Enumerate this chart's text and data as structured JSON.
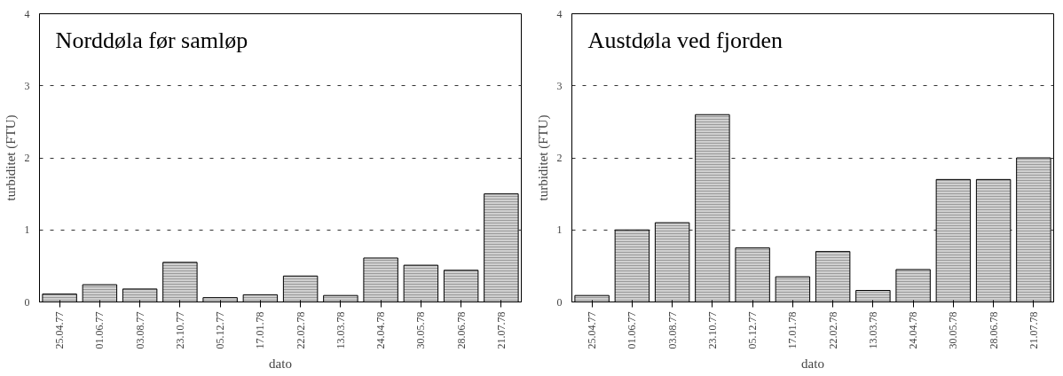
{
  "chart_data": [
    {
      "type": "bar",
      "title": "Norddøla før samløp",
      "xlabel": "dato",
      "ylabel": "turbiditet (FTU)",
      "categories": [
        "25.04.77",
        "01.06.77",
        "03.08.77",
        "23.10.77",
        "05.12.77",
        "17.01.78",
        "22.02.78",
        "13.03.78",
        "24.04.78",
        "30.05.78",
        "28.06.78",
        "21.07.78"
      ],
      "values": [
        0.11,
        0.24,
        0.18,
        0.55,
        0.06,
        0.1,
        0.36,
        0.09,
        0.61,
        0.51,
        0.44,
        1.5
      ],
      "color": "#d0d0d0",
      "ylim": [
        0,
        4
      ],
      "yticks": [
        0,
        1,
        2,
        3,
        4
      ],
      "grid": "y",
      "line_style": "dashed"
    },
    {
      "type": "bar",
      "title": "Austdøla ved fjorden",
      "xlabel": "dato",
      "ylabel": "turbiditet (FTU)",
      "categories": [
        "25.04.77",
        "01.06.77",
        "03.08.77",
        "23.10.77",
        "05.12.77",
        "17.01.78",
        "22.02.78",
        "13.03.78",
        "24.04.78",
        "30.05.78",
        "28.06.78",
        "21.07.78"
      ],
      "values": [
        0.09,
        1.0,
        1.1,
        2.6,
        0.75,
        0.35,
        0.7,
        0.16,
        0.45,
        1.7,
        1.7,
        2.0
      ],
      "color": "#d0d0d0",
      "ylim": [
        0,
        4
      ],
      "yticks": [
        0,
        1,
        2,
        3,
        4
      ],
      "grid": "y",
      "line_style": "dashed"
    }
  ]
}
